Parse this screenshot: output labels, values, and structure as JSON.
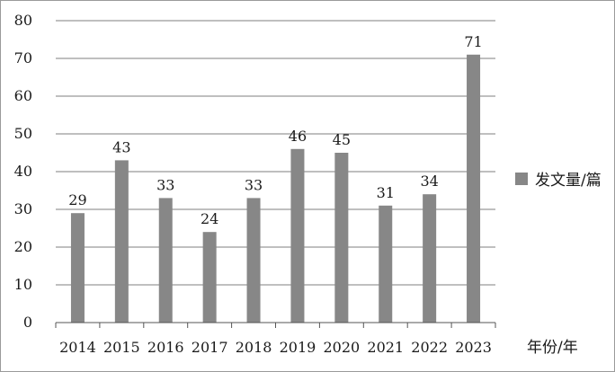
{
  "chart_data": {
    "type": "bar",
    "categories": [
      "2014",
      "2015",
      "2016",
      "2017",
      "2018",
      "2019",
      "2020",
      "2021",
      "2022",
      "2023"
    ],
    "series": [
      {
        "name": "发文量/篇",
        "values": [
          29,
          43,
          33,
          24,
          33,
          46,
          45,
          31,
          34,
          71
        ]
      }
    ],
    "xlabel": "年份/年",
    "ylabel": "",
    "ylim": [
      0,
      80
    ],
    "yticks": [
      0,
      10,
      20,
      30,
      40,
      50,
      60,
      70,
      80
    ],
    "grid": true,
    "legend_position": "right",
    "bar_color": "#878787",
    "grid_color": "#7f7f7f"
  }
}
